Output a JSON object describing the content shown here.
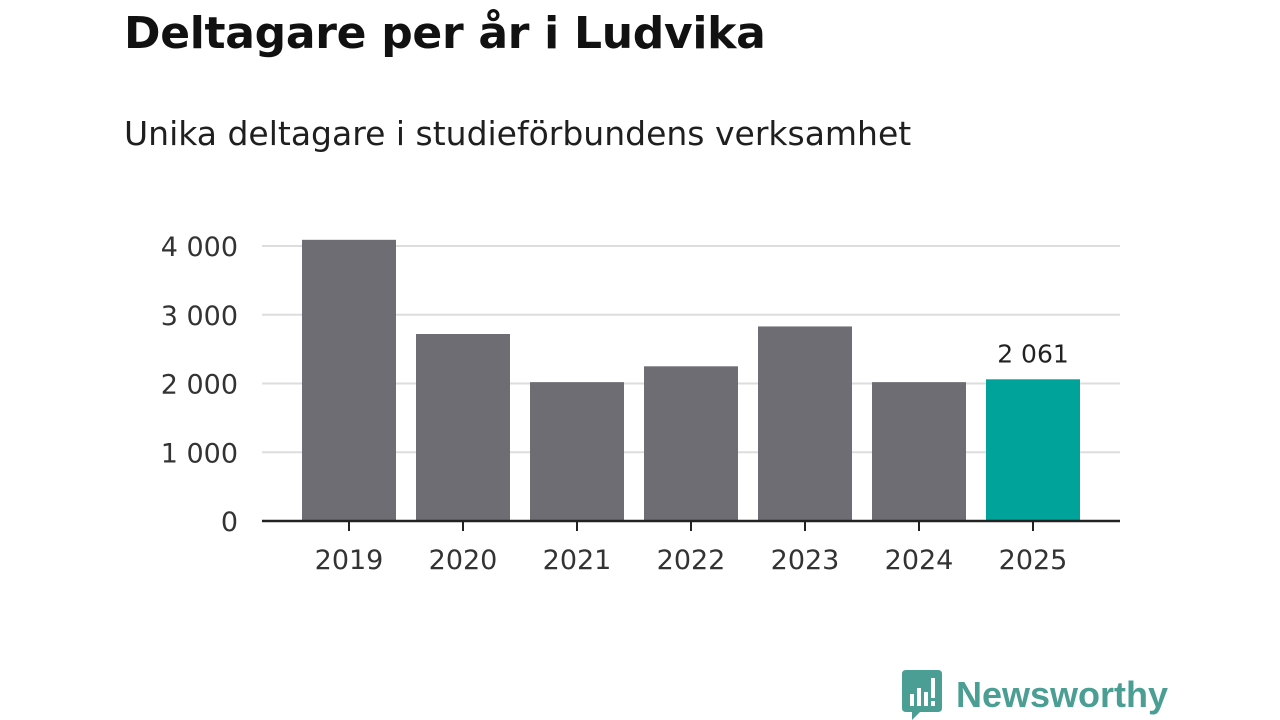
{
  "header": {
    "title": "Deltagare per år i Ludvika",
    "subtitle": "Unika deltagare i studieförbundens verksamhet"
  },
  "chart_data": {
    "type": "bar",
    "title": "Deltagare per år i Ludvika",
    "subtitle": "Unika deltagare i studieförbundens verksamhet",
    "xlabel": "",
    "ylabel": "",
    "categories": [
      "2019",
      "2020",
      "2021",
      "2022",
      "2023",
      "2024",
      "2025"
    ],
    "values": [
      4090,
      2720,
      2020,
      2250,
      2830,
      2020,
      2061
    ],
    "ylim": [
      0,
      4000
    ],
    "yticks": [
      0,
      1000,
      2000,
      3000,
      4000
    ],
    "ytick_labels": [
      "0",
      "1 000",
      "2 000",
      "3 000",
      "4 000"
    ],
    "grid": true,
    "highlight_index": 6,
    "data_labels": [
      {
        "index": 6,
        "text": "2 061"
      }
    ],
    "colors": {
      "bar": "#6e6d73",
      "highlight": "#00a399",
      "grid": "#dddddd",
      "axis": "#222222"
    }
  },
  "brand": {
    "name": "Newsworthy",
    "icon": "bar-chart-icon",
    "color": "#4a9e93"
  }
}
